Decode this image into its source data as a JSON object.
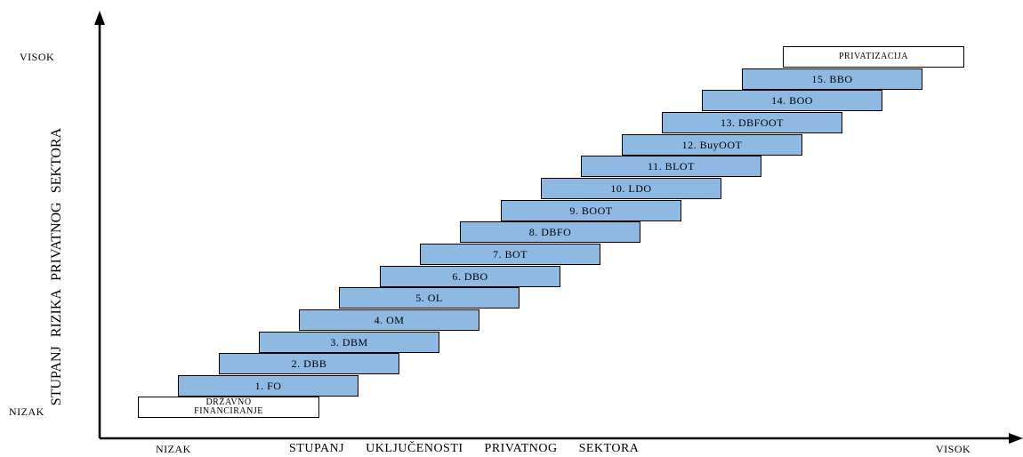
{
  "axes": {
    "y_title": "STUPANJ RIZIKA PRIVATNOG SEKTORA",
    "x_title": "STUPANJ UKLJUČENOSTI PRIVATNOG SEKTORA",
    "y_high": "VISOK",
    "y_low": "NIZAK",
    "x_low": "NIZAK",
    "x_high": "VISOK"
  },
  "start_box": {
    "line1": "DRŽAVNO",
    "line2": "FINANCIRANJE"
  },
  "end_box": {
    "label": "PRIVATIZACIJA"
  },
  "steps": [
    "1. FO",
    "2. DBB",
    "3. DBM",
    "4. OM",
    "5. OL",
    "6. DBO",
    "7. BOT",
    "8. DBFO",
    "9. BOOT",
    "10. LDO",
    "11. BLOT",
    "12. BuyOOT",
    "13. DBFOOT",
    "14. BOO",
    "15. BBO"
  ],
  "colors": {
    "step_fill": "#8db9e3",
    "box_fill": "#ffffff",
    "line": "#000000"
  }
}
